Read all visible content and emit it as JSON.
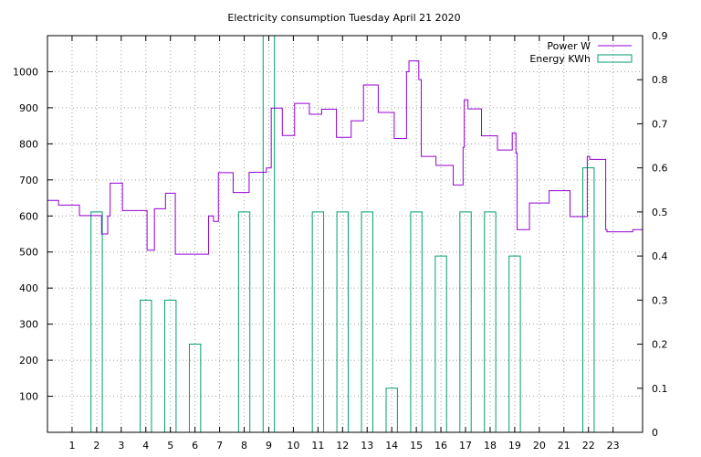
{
  "chart_data": {
    "type": "line",
    "title": "Electricity consumption Tuesday April 21 2020",
    "xlabel": "",
    "ylabel": "",
    "y2label": "",
    "xlim": [
      0,
      24.2
    ],
    "ylim": [
      0,
      1100
    ],
    "y2lim": [
      0,
      0.9
    ],
    "x_ticks": [
      "1",
      "2",
      "3",
      "4",
      "5",
      "6",
      "7",
      "8",
      "9",
      "10",
      "11",
      "12",
      "13",
      "14",
      "15",
      "16",
      "17",
      "18",
      "19",
      "20",
      "21",
      "22",
      "23"
    ],
    "y_ticks": [
      "100",
      "200",
      "300",
      "400",
      "500",
      "600",
      "700",
      "800",
      "900",
      "1000"
    ],
    "y2_ticks": [
      "0",
      "0.1",
      "0.2",
      "0.3",
      "0.4",
      "0.5",
      "0.6",
      "0.7",
      "0.8",
      "0.9"
    ],
    "grid": true,
    "legend_position": "top-right",
    "series": [
      {
        "name": "Power W",
        "type": "step",
        "axis": "y",
        "color": "#9400d3",
        "points": [
          [
            0,
            643
          ],
          [
            0.45,
            630
          ],
          [
            1.3,
            601
          ],
          [
            2.2,
            550
          ],
          [
            2.45,
            600
          ],
          [
            2.55,
            691
          ],
          [
            3.05,
            615
          ],
          [
            4.05,
            505
          ],
          [
            4.35,
            620
          ],
          [
            4.8,
            663
          ],
          [
            5.2,
            494
          ],
          [
            6.55,
            600
          ],
          [
            6.75,
            585
          ],
          [
            6.95,
            720
          ],
          [
            7.55,
            665
          ],
          [
            8.2,
            721
          ],
          [
            8.9,
            733
          ],
          [
            9.1,
            899
          ],
          [
            9.55,
            823
          ],
          [
            10.05,
            912
          ],
          [
            10.65,
            882
          ],
          [
            11.15,
            896
          ],
          [
            11.75,
            818
          ],
          [
            12.35,
            864
          ],
          [
            12.85,
            963
          ],
          [
            13.45,
            887
          ],
          [
            14.1,
            815
          ],
          [
            14.6,
            1000
          ],
          [
            14.7,
            1030
          ],
          [
            15.1,
            978
          ],
          [
            15.2,
            765
          ],
          [
            15.8,
            740
          ],
          [
            16.5,
            686
          ],
          [
            16.9,
            790
          ],
          [
            16.95,
            922
          ],
          [
            17.1,
            897
          ],
          [
            17.65,
            822
          ],
          [
            18.3,
            783
          ],
          [
            18.9,
            830
          ],
          [
            19.05,
            775
          ],
          [
            19.1,
            562
          ],
          [
            19.6,
            636
          ],
          [
            20.4,
            670
          ],
          [
            21.25,
            598
          ],
          [
            21.95,
            765
          ],
          [
            22.05,
            757
          ],
          [
            22.7,
            562
          ],
          [
            22.75,
            556
          ],
          [
            23.8,
            562
          ],
          [
            24.2,
            562
          ]
        ]
      },
      {
        "name": "Energy KWh",
        "type": "bar",
        "axis": "y2",
        "color": "#009e73",
        "bars": [
          {
            "x": 2,
            "value": 0.5
          },
          {
            "x": 4,
            "value": 0.3
          },
          {
            "x": 5,
            "value": 0.3
          },
          {
            "x": 6,
            "value": 0.2
          },
          {
            "x": 8,
            "value": 0.5
          },
          {
            "x": 9,
            "value": 0.9
          },
          {
            "x": 11,
            "value": 0.5
          },
          {
            "x": 12,
            "value": 0.5
          },
          {
            "x": 13,
            "value": 0.5
          },
          {
            "x": 14,
            "value": 0.1
          },
          {
            "x": 15,
            "value": 0.5
          },
          {
            "x": 16,
            "value": 0.4
          },
          {
            "x": 17,
            "value": 0.5
          },
          {
            "x": 18,
            "value": 0.5
          },
          {
            "x": 19,
            "value": 0.4
          },
          {
            "x": 22,
            "value": 0.6
          }
        ]
      }
    ]
  }
}
